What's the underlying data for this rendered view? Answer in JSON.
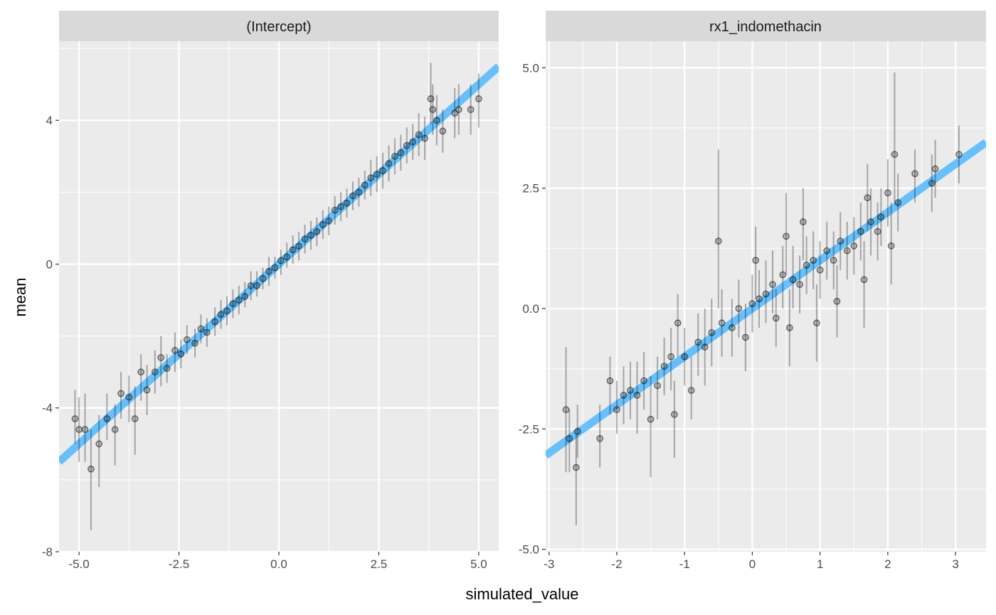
{
  "chart_data": {
    "type": "scatter",
    "xlabel": "simulated_value",
    "ylabel": "mean",
    "grid": true,
    "legend": "none",
    "fit_line": {
      "color": "#4db8ff",
      "slope": 1,
      "intercept": 0
    },
    "panels": [
      {
        "strip_label": "(Intercept)",
        "xlim": [
          -5.5,
          5.5
        ],
        "ylim": [
          -8,
          6.2
        ],
        "x_ticks": [
          -5.0,
          -2.5,
          0.0,
          2.5,
          5.0
        ],
        "x_tick_labels": [
          "-5.0",
          "-2.5",
          "0.0",
          "2.5",
          "5.0"
        ],
        "y_ticks": [
          -8,
          -4,
          0,
          4
        ],
        "y_tick_labels": [
          "-8",
          "-4",
          "0",
          "4"
        ],
        "points": [
          [
            -5.1,
            -4.3,
            -5.0,
            -3.5
          ],
          [
            -5.0,
            -4.6,
            -5.5,
            -3.7
          ],
          [
            -4.85,
            -4.6,
            -5.5,
            -3.6
          ],
          [
            -4.7,
            -5.7,
            -7.4,
            -4.6
          ],
          [
            -4.5,
            -5.0,
            -6.2,
            -4.2
          ],
          [
            -4.3,
            -4.3,
            -4.9,
            -3.6
          ],
          [
            -4.1,
            -4.6,
            -5.6,
            -3.9
          ],
          [
            -3.95,
            -3.6,
            -4.3,
            -3.0
          ],
          [
            -3.75,
            -3.7,
            -4.4,
            -3.1
          ],
          [
            -3.6,
            -4.3,
            -5.3,
            -3.4
          ],
          [
            -3.45,
            -3.0,
            -3.8,
            -2.5
          ],
          [
            -3.3,
            -3.5,
            -4.2,
            -2.8
          ],
          [
            -3.1,
            -3.0,
            -3.6,
            -2.4
          ],
          [
            -2.95,
            -2.6,
            -3.4,
            -2.0
          ],
          [
            -2.8,
            -2.9,
            -3.3,
            -2.5
          ],
          [
            -2.6,
            -2.4,
            -3.0,
            -1.9
          ],
          [
            -2.45,
            -2.5,
            -2.9,
            -2.1
          ],
          [
            -2.3,
            -2.1,
            -2.5,
            -1.7
          ],
          [
            -2.1,
            -2.2,
            -2.6,
            -1.8
          ],
          [
            -1.95,
            -1.8,
            -2.2,
            -1.4
          ],
          [
            -1.8,
            -1.9,
            -2.3,
            -1.5
          ],
          [
            -1.6,
            -1.6,
            -2.0,
            -1.2
          ],
          [
            -1.45,
            -1.4,
            -1.8,
            -1.0
          ],
          [
            -1.3,
            -1.3,
            -1.7,
            -0.9
          ],
          [
            -1.15,
            -1.1,
            -1.5,
            -0.7
          ],
          [
            -1.0,
            -1.0,
            -1.4,
            -0.6
          ],
          [
            -0.85,
            -0.9,
            -1.2,
            -0.5
          ],
          [
            -0.7,
            -0.6,
            -1.0,
            -0.2
          ],
          [
            -0.55,
            -0.6,
            -0.9,
            -0.2
          ],
          [
            -0.4,
            -0.4,
            -0.7,
            -0.1
          ],
          [
            -0.25,
            -0.2,
            -0.6,
            0.2
          ],
          [
            -0.1,
            -0.1,
            -0.4,
            0.2
          ],
          [
            0.05,
            0.1,
            -0.3,
            0.4
          ],
          [
            0.2,
            0.2,
            -0.1,
            0.6
          ],
          [
            0.35,
            0.4,
            0.0,
            0.8
          ],
          [
            0.5,
            0.5,
            0.1,
            0.9
          ],
          [
            0.65,
            0.7,
            0.3,
            1.1
          ],
          [
            0.8,
            0.8,
            0.4,
            1.2
          ],
          [
            0.95,
            0.9,
            0.5,
            1.3
          ],
          [
            1.1,
            1.1,
            0.7,
            1.5
          ],
          [
            1.25,
            1.2,
            0.8,
            1.6
          ],
          [
            1.4,
            1.5,
            1.1,
            1.9
          ],
          [
            1.55,
            1.6,
            1.2,
            2.0
          ],
          [
            1.7,
            1.7,
            1.3,
            2.1
          ],
          [
            1.85,
            1.9,
            1.5,
            2.3
          ],
          [
            2.0,
            2.0,
            1.6,
            2.4
          ],
          [
            2.15,
            2.2,
            1.8,
            2.6
          ],
          [
            2.3,
            2.4,
            1.9,
            2.9
          ],
          [
            2.45,
            2.5,
            2.0,
            3.0
          ],
          [
            2.6,
            2.6,
            2.1,
            3.1
          ],
          [
            2.75,
            2.8,
            2.3,
            3.3
          ],
          [
            2.9,
            3.0,
            2.5,
            3.5
          ],
          [
            3.05,
            3.1,
            2.6,
            3.6
          ],
          [
            3.2,
            3.3,
            2.8,
            3.8
          ],
          [
            3.35,
            3.4,
            2.9,
            3.9
          ],
          [
            3.5,
            3.6,
            3.0,
            4.2
          ],
          [
            3.65,
            3.5,
            2.9,
            4.1
          ],
          [
            3.8,
            4.6,
            3.9,
            5.6
          ],
          [
            3.85,
            4.3,
            3.6,
            5.0
          ],
          [
            3.95,
            4.0,
            3.3,
            4.7
          ],
          [
            4.1,
            3.7,
            3.1,
            4.3
          ],
          [
            4.4,
            4.2,
            3.5,
            4.9
          ],
          [
            4.5,
            4.3,
            3.6,
            5.0
          ],
          [
            4.8,
            4.3,
            3.6,
            5.0
          ],
          [
            5.0,
            4.6,
            3.8,
            5.3
          ]
        ]
      },
      {
        "strip_label": "rx1_indomethacin",
        "xlim": [
          -3.05,
          3.45
        ],
        "ylim": [
          -5.05,
          5.55
        ],
        "x_ticks": [
          -3,
          -2,
          -1,
          0,
          1,
          2,
          3
        ],
        "x_tick_labels": [
          "-3",
          "-2",
          "-1",
          "0",
          "1",
          "2",
          "3"
        ],
        "y_ticks": [
          -5.0,
          -2.5,
          0.0,
          2.5,
          5.0
        ],
        "y_tick_labels": [
          "-5.0",
          "-2.5",
          "0.0",
          "2.5",
          "5.0"
        ],
        "points": [
          [
            -2.75,
            -2.1,
            -3.4,
            -0.8
          ],
          [
            -2.7,
            -2.7,
            -3.4,
            -2.1
          ],
          [
            -2.6,
            -3.3,
            -4.5,
            -2.6
          ],
          [
            -2.58,
            -2.55,
            -3.1,
            -2.0
          ],
          [
            -2.25,
            -2.7,
            -3.3,
            -2.0
          ],
          [
            -2.1,
            -1.5,
            -2.2,
            -1.0
          ],
          [
            -2.0,
            -2.1,
            -2.6,
            -1.5
          ],
          [
            -1.9,
            -1.8,
            -2.4,
            -1.2
          ],
          [
            -1.8,
            -1.7,
            -2.3,
            -1.1
          ],
          [
            -1.7,
            -1.8,
            -2.6,
            -1.1
          ],
          [
            -1.6,
            -1.5,
            -2.1,
            -0.9
          ],
          [
            -1.5,
            -2.3,
            -3.5,
            -1.4
          ],
          [
            -1.4,
            -1.6,
            -2.3,
            -1.0
          ],
          [
            -1.3,
            -1.2,
            -1.8,
            -0.6
          ],
          [
            -1.2,
            -1.0,
            -1.7,
            -0.4
          ],
          [
            -1.15,
            -2.2,
            -3.1,
            -1.5
          ],
          [
            -1.1,
            -0.3,
            -1.0,
            0.3
          ],
          [
            -1.0,
            -1.0,
            -1.6,
            -0.4
          ],
          [
            -0.9,
            -1.7,
            -2.3,
            -1.0
          ],
          [
            -0.8,
            -0.7,
            -1.4,
            -0.1
          ],
          [
            -0.7,
            -0.8,
            -1.6,
            0.0
          ],
          [
            -0.6,
            -0.5,
            -1.2,
            0.2
          ],
          [
            -0.5,
            1.4,
            0.0,
            3.3
          ],
          [
            -0.45,
            -0.3,
            -1.0,
            0.4
          ],
          [
            -0.3,
            -0.4,
            -1.0,
            0.2
          ],
          [
            -0.2,
            0.0,
            -0.6,
            0.6
          ],
          [
            -0.1,
            -0.6,
            -1.3,
            0.1
          ],
          [
            0.0,
            0.1,
            -0.5,
            0.7
          ],
          [
            0.05,
            1.0,
            0.2,
            1.7
          ],
          [
            0.1,
            0.2,
            -0.4,
            0.8
          ],
          [
            0.2,
            0.3,
            -0.3,
            1.0
          ],
          [
            0.3,
            0.5,
            -0.1,
            1.2
          ],
          [
            0.35,
            -0.2,
            -0.8,
            0.4
          ],
          [
            0.45,
            0.7,
            0.0,
            1.3
          ],
          [
            0.5,
            1.5,
            0.7,
            2.4
          ],
          [
            0.55,
            -0.4,
            -1.2,
            0.4
          ],
          [
            0.6,
            0.6,
            0.0,
            1.3
          ],
          [
            0.7,
            0.5,
            -0.1,
            1.1
          ],
          [
            0.75,
            1.8,
            1.0,
            2.5
          ],
          [
            0.8,
            0.9,
            0.3,
            1.5
          ],
          [
            0.9,
            1.0,
            0.4,
            1.6
          ],
          [
            0.95,
            -0.3,
            -1.1,
            0.5
          ],
          [
            1.0,
            0.8,
            0.2,
            1.4
          ],
          [
            1.1,
            1.2,
            0.6,
            1.8
          ],
          [
            1.2,
            1.0,
            0.4,
            1.6
          ],
          [
            1.25,
            0.15,
            -0.6,
            0.9
          ],
          [
            1.3,
            1.4,
            0.8,
            2.0
          ],
          [
            1.4,
            1.2,
            0.6,
            1.8
          ],
          [
            1.5,
            1.3,
            0.7,
            1.9
          ],
          [
            1.6,
            1.6,
            1.0,
            2.2
          ],
          [
            1.65,
            0.6,
            -0.4,
            1.4
          ],
          [
            1.7,
            2.3,
            1.6,
            3.0
          ],
          [
            1.75,
            1.8,
            1.1,
            2.5
          ],
          [
            1.85,
            1.6,
            1.0,
            2.2
          ],
          [
            1.9,
            1.9,
            1.3,
            2.5
          ],
          [
            2.0,
            2.4,
            1.7,
            3.1
          ],
          [
            2.05,
            1.3,
            0.5,
            2.2
          ],
          [
            2.1,
            3.2,
            2.2,
            4.9
          ],
          [
            2.15,
            2.2,
            1.6,
            2.8
          ],
          [
            2.4,
            2.8,
            2.2,
            3.3
          ],
          [
            2.65,
            2.6,
            2.0,
            3.2
          ],
          [
            2.7,
            2.9,
            2.3,
            3.5
          ],
          [
            3.05,
            3.2,
            2.6,
            3.8
          ]
        ]
      }
    ]
  }
}
